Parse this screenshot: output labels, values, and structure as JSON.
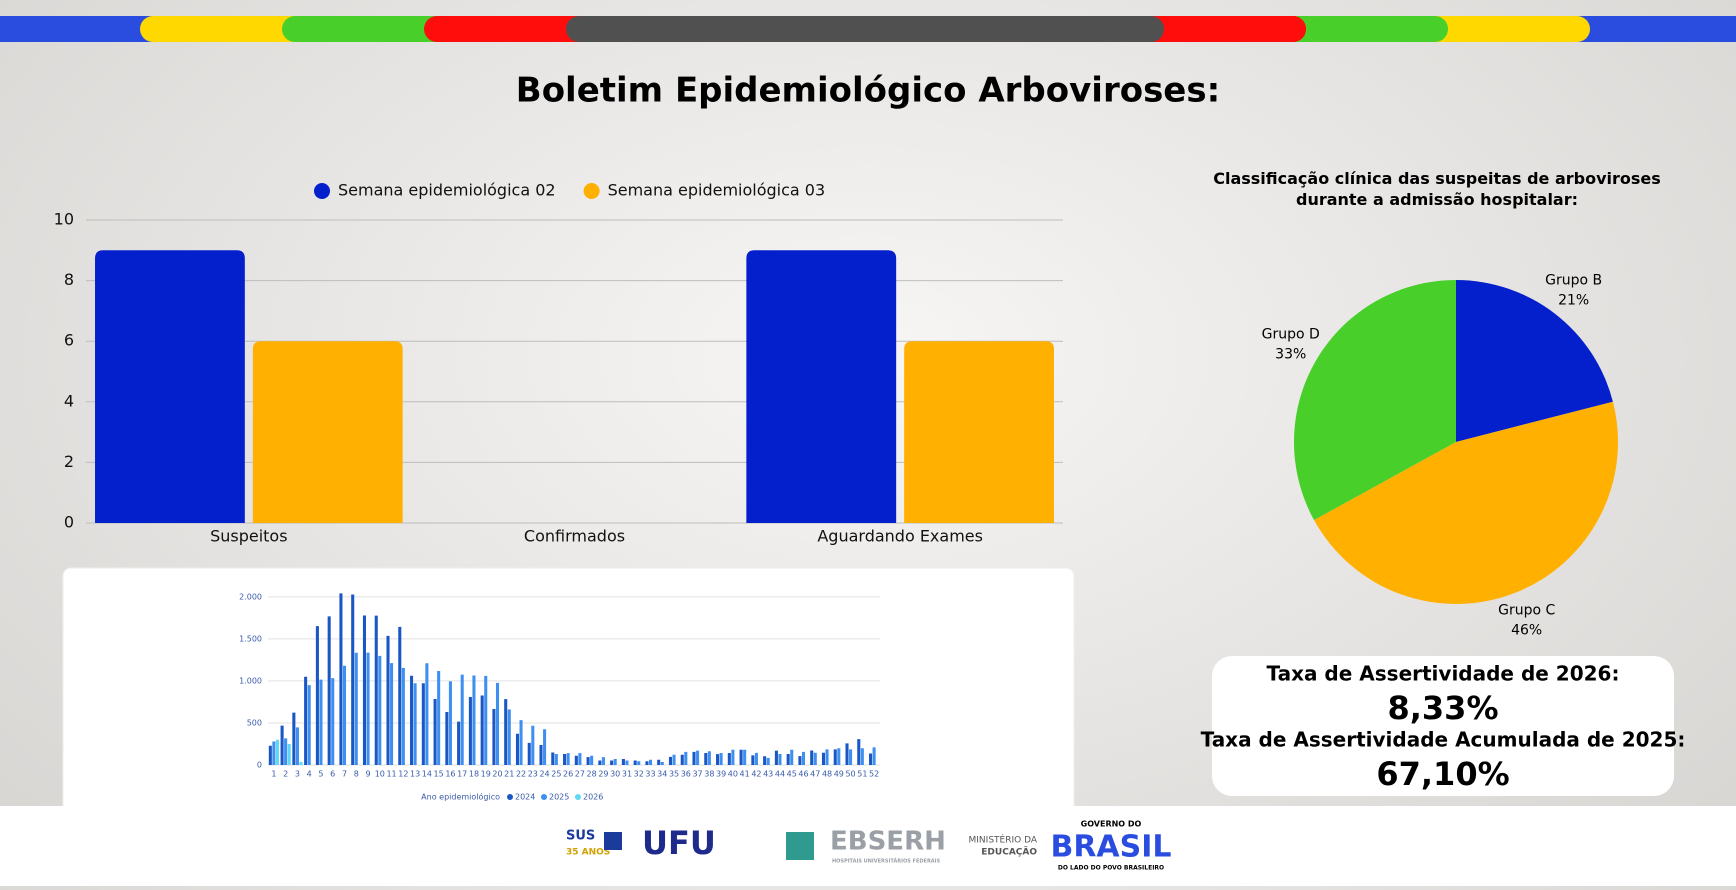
{
  "title": "Boletim Epidemiológico Arboviroses:",
  "chart_data": [
    {
      "type": "bar",
      "categories": [
        "Suspeitos",
        "Confirmados",
        "Aguardando Exames"
      ],
      "series": [
        {
          "name": "Semana epidemiológica 02",
          "color": "#0420cc",
          "values": [
            9,
            0,
            9
          ]
        },
        {
          "name": "Semana epidemiológica 03",
          "color": "#ffb000",
          "values": [
            6,
            0,
            6
          ]
        }
      ],
      "ylim": [
        0,
        10
      ],
      "yticks": [
        0,
        2,
        4,
        6,
        8,
        10
      ],
      "grid": true,
      "legend": "top"
    },
    {
      "type": "pie",
      "title": "Classificação clínica das suspeitas de arboviroses durante a admissão hospitalar:",
      "categories": [
        "Grupo B",
        "Grupo C",
        "Grupo D"
      ],
      "values": [
        21,
        46,
        33
      ],
      "value_labels": [
        "21%",
        "46%",
        "33%"
      ],
      "colors": [
        "#0420cc",
        "#ffb000",
        "#48cf2a"
      ]
    },
    {
      "type": "bar",
      "xlabel": "Ano epidemiológico",
      "categories": [
        "1",
        "2",
        "3",
        "4",
        "5",
        "6",
        "7",
        "8",
        "9",
        "10",
        "11",
        "12",
        "13",
        "14",
        "15",
        "16",
        "17",
        "18",
        "19",
        "20",
        "21",
        "22",
        "23",
        "24",
        "25",
        "26",
        "27",
        "28",
        "29",
        "30",
        "31",
        "32",
        "33",
        "34",
        "35",
        "36",
        "37",
        "38",
        "39",
        "40",
        "41",
        "42",
        "43",
        "44",
        "45",
        "46",
        "47",
        "48",
        "49",
        "50",
        "51",
        "52"
      ],
      "series": [
        {
          "name": "2024",
          "color": "#1a56c4",
          "values": [
            229,
            468,
            623,
            1050,
            1652,
            1768,
            2041,
            2028,
            1778,
            1777,
            1535,
            1642,
            1062,
            972,
            785,
            631,
            516,
            809,
            827,
            666,
            784,
            372,
            263,
            238,
            148,
            131,
            110,
            93,
            53,
            53,
            72,
            54,
            44,
            63,
            96,
            122,
            156,
            143,
            129,
            143,
            182,
            114,
            104,
            171,
            131,
            106,
            172,
            146,
            186,
            257,
            307,
            137
          ]
        },
        {
          "name": "2025",
          "color": "#3d8ff0",
          "values": [
            279,
            316,
            448,
            950,
            1015,
            1033,
            1181,
            1335,
            1337,
            1297,
            1211,
            1155,
            972,
            1210,
            1118,
            994,
            1074,
            1064,
            1060,
            977,
            660,
            534,
            467,
            425,
            131,
            141,
            141,
            110,
            93,
            72,
            54,
            44,
            63,
            36,
            122,
            156,
            171,
            163,
            143,
            182,
            181,
            144,
            84,
            131,
            181,
            156,
            146,
            186,
            199,
            186,
            199,
            210
          ]
        },
        {
          "name": "2026",
          "color": "#5fd8f5",
          "values": [
            300,
            250,
            37,
            null,
            null,
            null,
            null,
            null,
            null,
            null,
            null,
            null,
            null,
            null,
            null,
            null,
            null,
            null,
            null,
            null,
            null,
            null,
            null,
            null,
            null,
            null,
            null,
            null,
            null,
            null,
            null,
            null,
            null,
            null,
            null,
            null,
            null,
            null,
            null,
            null,
            null,
            null,
            null,
            null,
            null,
            null,
            null,
            null,
            null,
            null,
            null,
            null
          ]
        }
      ],
      "ylim": [
        0,
        2200
      ],
      "yticks": [
        0,
        500,
        {
          "value": 1000,
          "label": "1.000"
        },
        {
          "value": 1500,
          "label": "1.500"
        },
        {
          "value": 2000,
          "label": "2.000"
        }
      ],
      "grid": true
    }
  ],
  "stats": [
    {
      "label": "Taxa de Assertividade de 2026:",
      "value": "8,33%"
    },
    {
      "label": "Taxa de Assertividade Acumulada de 2025:",
      "value": "67,10%"
    }
  ],
  "footer": [
    "SUS",
    "35 ANOS",
    "UFU",
    "EBSERH",
    "HOSPITAIS UNIVERSITÁRIOS FEDERAIS",
    "MINISTÉRIO DA",
    "EDUCAÇÃO",
    "GOVERNO DO",
    "BRASIL",
    "DO LADO DO POVO BRASILEIRO"
  ]
}
